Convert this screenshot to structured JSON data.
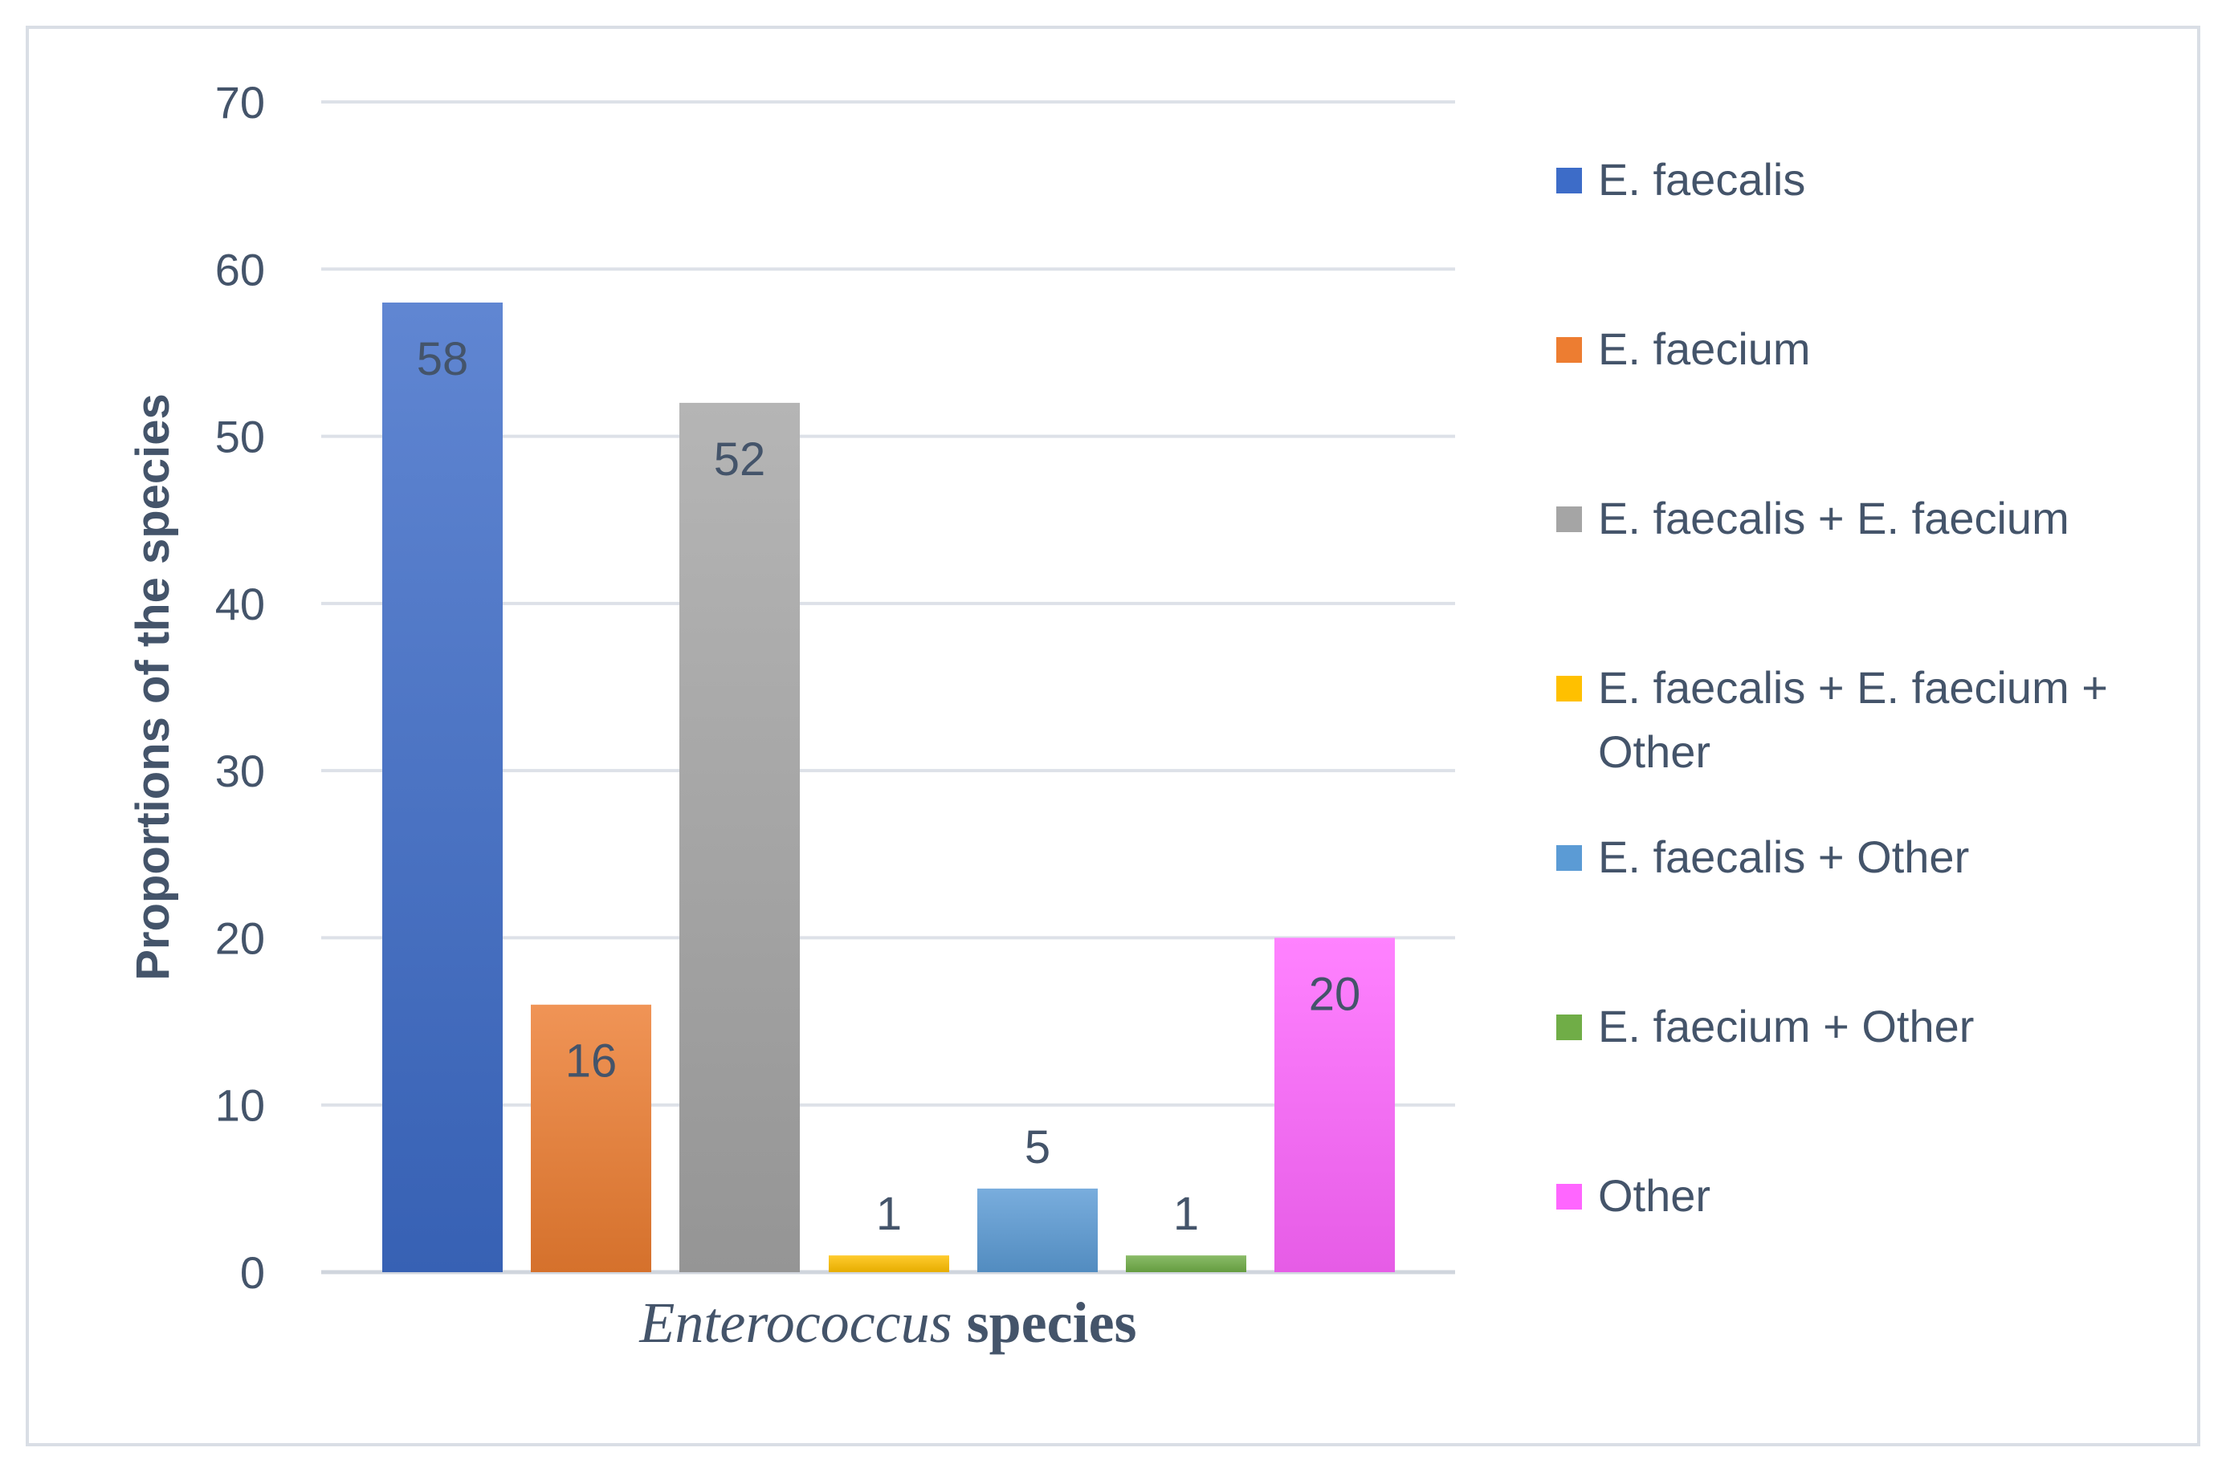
{
  "chart_data": {
    "type": "bar",
    "categories": [
      "E. faecalis",
      "E. faecium",
      "E. faecalis + E. faecium",
      "E. faecalis + E. faecium + Other",
      "E. faecalis + Other",
      "E. faecium + Other",
      "Other"
    ],
    "values": [
      58,
      16,
      52,
      1,
      5,
      1,
      20
    ],
    "colors": [
      "#3d6cc8",
      "#ed7d31",
      "#a5a5a5",
      "#ffc000",
      "#5b9bd5",
      "#70ad47",
      "#ff66ff"
    ],
    "ylim": [
      0,
      70
    ],
    "yticks": [
      0,
      10,
      20,
      30,
      40,
      50,
      60,
      70
    ],
    "ylabel": "Proportions of the species",
    "xlabel_italic": "Enterococcus",
    "xlabel_rest": " species",
    "grid": true,
    "legend_position": "right"
  },
  "legend": {
    "entries": [
      [
        "E. faecalis"
      ],
      [
        "E. faecium"
      ],
      [
        "E. faecalis + E. faecium"
      ],
      [
        "E. faecalis + E. faecium +",
        "Other"
      ],
      [
        "E. faecalis + Other"
      ],
      [
        "E. faecium + Other"
      ],
      [
        "Other"
      ]
    ]
  }
}
